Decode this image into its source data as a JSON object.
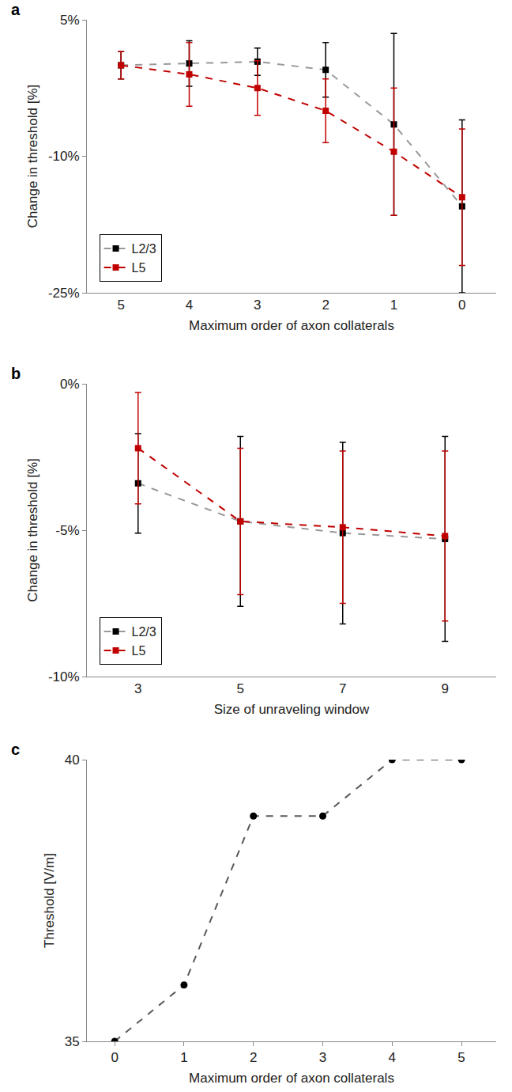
{
  "chart_data": [
    {
      "type": "line",
      "annotations": [
        "a"
      ],
      "x_label": "Maximum order of axon collaterals",
      "y_label": "Change in threshold [%]",
      "categories": [
        "5",
        "4",
        "3",
        "2",
        "1",
        "0"
      ],
      "series": [
        {
          "name": "L2/3",
          "color": "#000000",
          "marker": "square",
          "line_style": "dash",
          "values": [
            0,
            0.2,
            0.4,
            -0.5,
            -6.5,
            -15.5
          ],
          "errors": [
            1.5,
            2.5,
            1.5,
            3,
            10,
            9.5
          ]
        },
        {
          "name": "L5",
          "color": "#c00000",
          "marker": "square",
          "line_style": "dash",
          "values": [
            0,
            -1,
            -2.5,
            -5,
            -9.5,
            -14.5
          ],
          "errors": [
            1.5,
            3.5,
            3,
            3.5,
            7,
            7.5
          ]
        }
      ],
      "ylim": [
        -25,
        5
      ],
      "yticks": [
        {
          "value": 5,
          "label": "5%"
        },
        {
          "value": -10,
          "label": "-10%"
        },
        {
          "value": -25,
          "label": "-25%"
        }
      ],
      "grid": false,
      "legend": "lower left"
    },
    {
      "type": "line",
      "annotations": [
        "b"
      ],
      "x_label": "Size of unraveling window",
      "y_label": "Change in threshold [%]",
      "categories": [
        "3",
        "5",
        "7",
        "9"
      ],
      "series": [
        {
          "name": "L2/3",
          "color": "#000000",
          "marker": "square",
          "line_style": "dash",
          "values": [
            -3.4,
            -4.7,
            -5.1,
            -5.3
          ],
          "errors": [
            1.7,
            2.9,
            3.1,
            3.5
          ]
        },
        {
          "name": "L5",
          "color": "#c00000",
          "marker": "square",
          "line_style": "dash",
          "values": [
            -2.2,
            -4.7,
            -4.9,
            -5.2
          ],
          "errors": [
            1.9,
            2.5,
            2.6,
            2.9
          ]
        }
      ],
      "ylim": [
        -10,
        0
      ],
      "yticks": [
        {
          "value": 0,
          "label": "0%"
        },
        {
          "value": -5,
          "label": "-5%"
        },
        {
          "value": -10,
          "label": "-10%"
        }
      ],
      "grid": false,
      "legend": "lower left"
    },
    {
      "type": "line",
      "annotations": [
        "c"
      ],
      "x_label": "Maximum order of axon collaterals",
      "y_label": "Threshold [V/m]",
      "x": [
        0,
        1,
        2,
        3,
        4,
        5
      ],
      "values": [
        35,
        36,
        39,
        39,
        40,
        40
      ],
      "color": "#000000",
      "marker": "circle",
      "line_style": "dash",
      "xlim": [
        -0.4,
        5.5
      ],
      "xticks": [
        0,
        1,
        2,
        3,
        4,
        5
      ],
      "ylim": [
        35,
        40
      ],
      "yticks": [
        35,
        40
      ],
      "grid": false
    }
  ]
}
